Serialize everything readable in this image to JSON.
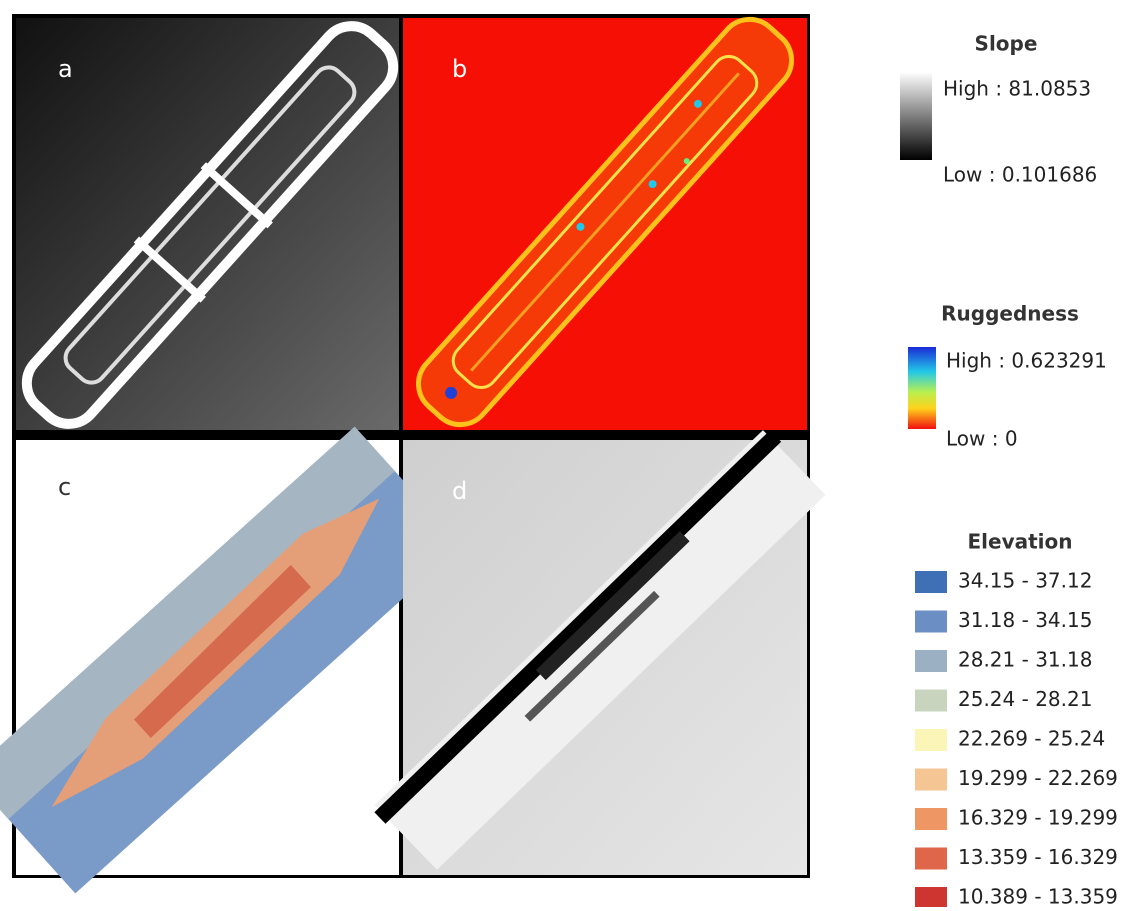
{
  "panels": [
    "a",
    "b",
    "c",
    "d"
  ],
  "slope": {
    "title": "Slope",
    "high": "High : 81.0853",
    "low": "Low : 0.101686"
  },
  "ruggedness": {
    "title": "Ruggedness",
    "high": "High : 0.623291",
    "low": "Low : 0"
  },
  "elevation": {
    "title": "Elevation",
    "classes": [
      {
        "label": "34.15 - 37.12",
        "color": "#3f6fb5"
      },
      {
        "label": "31.18 - 34.15",
        "color": "#6b8fc4"
      },
      {
        "label": "28.21 - 31.18",
        "color": "#9bb0c3"
      },
      {
        "label": "25.24 - 28.21",
        "color": "#c9d4bf"
      },
      {
        "label": "22.269 - 25.24",
        "color": "#fbf6b8"
      },
      {
        "label": "19.299 - 22.269",
        "color": "#f6c594"
      },
      {
        "label": "16.329 - 19.299",
        "color": "#ef9764"
      },
      {
        "label": "13.359 - 16.329",
        "color": "#e0664a"
      },
      {
        "label": "10.389 - 13.359",
        "color": "#cf3530"
      }
    ]
  }
}
